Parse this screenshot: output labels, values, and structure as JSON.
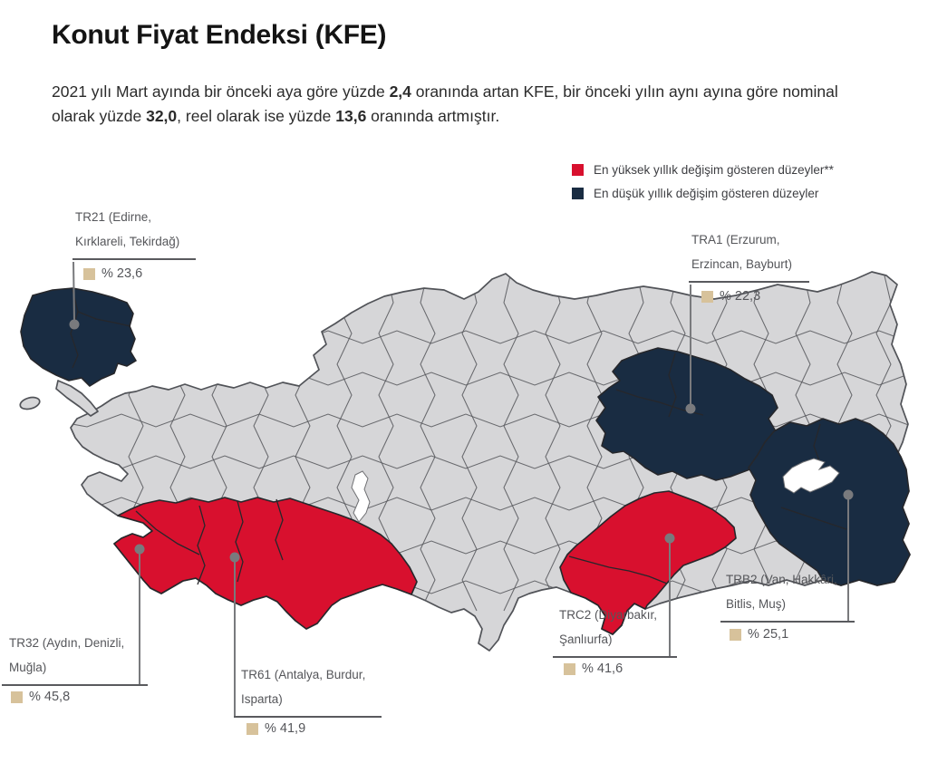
{
  "title": "Konut Fiyat Endeksi (KFE)",
  "intro": {
    "part1": "2021 yılı Mart ayında bir önceki aya göre yüzde ",
    "bold1": "2,4",
    "part2": " oranında artan KFE, bir önceki yılın aynı ayına göre nominal olarak yüzde ",
    "bold2": "32,0",
    "part3": ", reel olarak ise yüzde ",
    "bold3": "13,6",
    "part4": " oranında artmıştır."
  },
  "legend": {
    "high": {
      "label": "En yüksek yıllık değişim gösteren düzeyler**",
      "color": "#d8102e"
    },
    "low": {
      "label": "En düşük yıllık değişim gösteren düzeyler",
      "color": "#192c42"
    }
  },
  "colors": {
    "map_gray": "#d6d6d8",
    "red": "#d8102e",
    "navy": "#192c42",
    "lake": "#ffffff",
    "marker_tan": "#d7c29b",
    "connector_gray": "#797a7d"
  },
  "callouts": {
    "tr21": {
      "line1": "TR21 (Edirne,",
      "line2": "Kırklareli, Tekirdağ)",
      "value": "% 23,6"
    },
    "tra1": {
      "line1": "TRA1 (Erzurum,",
      "line2": "Erzincan, Bayburt)",
      "value": "% 22,3"
    },
    "trb2": {
      "line1": "TRB2 (Van, Hakkâri,",
      "line2": "Bitlis, Muş)",
      "value": "% 25,1"
    },
    "trc2": {
      "line1": "TRC2 (Diyarbakır,",
      "line2": "Şanlıurfa)",
      "value": "% 41,6"
    },
    "tr61": {
      "line1": "TR61 (Antalya, Burdur,",
      "line2": "Isparta)",
      "value": "% 41,9"
    },
    "tr32": {
      "line1": "TR32 (Aydın, Denizli,",
      "line2": "Muğla)",
      "value": "% 45,8"
    }
  },
  "chart_data": {
    "type": "choropleth",
    "title": "Konut Fiyat Endeksi (KFE)",
    "unit": "yıllık yüzde değişim",
    "stats": {
      "monthly_change_pct": 2.4,
      "annual_nominal_pct": 32.0,
      "annual_real_pct": 13.6,
      "period": "2021 Mart"
    },
    "series": [
      {
        "code": "TR21",
        "provinces": "Edirne, Kırklareli, Tekirdağ",
        "value": 23.6,
        "category": "lowest"
      },
      {
        "code": "TRA1",
        "provinces": "Erzurum, Erzincan, Bayburt",
        "value": 22.3,
        "category": "lowest"
      },
      {
        "code": "TRB2",
        "provinces": "Van, Hakkâri, Bitlis, Muş",
        "value": 25.1,
        "category": "lowest"
      },
      {
        "code": "TRC2",
        "provinces": "Diyarbakır, Şanlıurfa",
        "value": 41.6,
        "category": "highest"
      },
      {
        "code": "TR61",
        "provinces": "Antalya, Burdur, Isparta",
        "value": 41.9,
        "category": "highest"
      },
      {
        "code": "TR32",
        "provinces": "Aydın, Denizli, Muğla",
        "value": 45.8,
        "category": "highest"
      }
    ],
    "legend_entries": [
      "En yüksek yıllık değişim gösteren düzeyler**",
      "En düşük yıllık değişim gösteren düzeyler"
    ],
    "legend_position": "top-right"
  }
}
